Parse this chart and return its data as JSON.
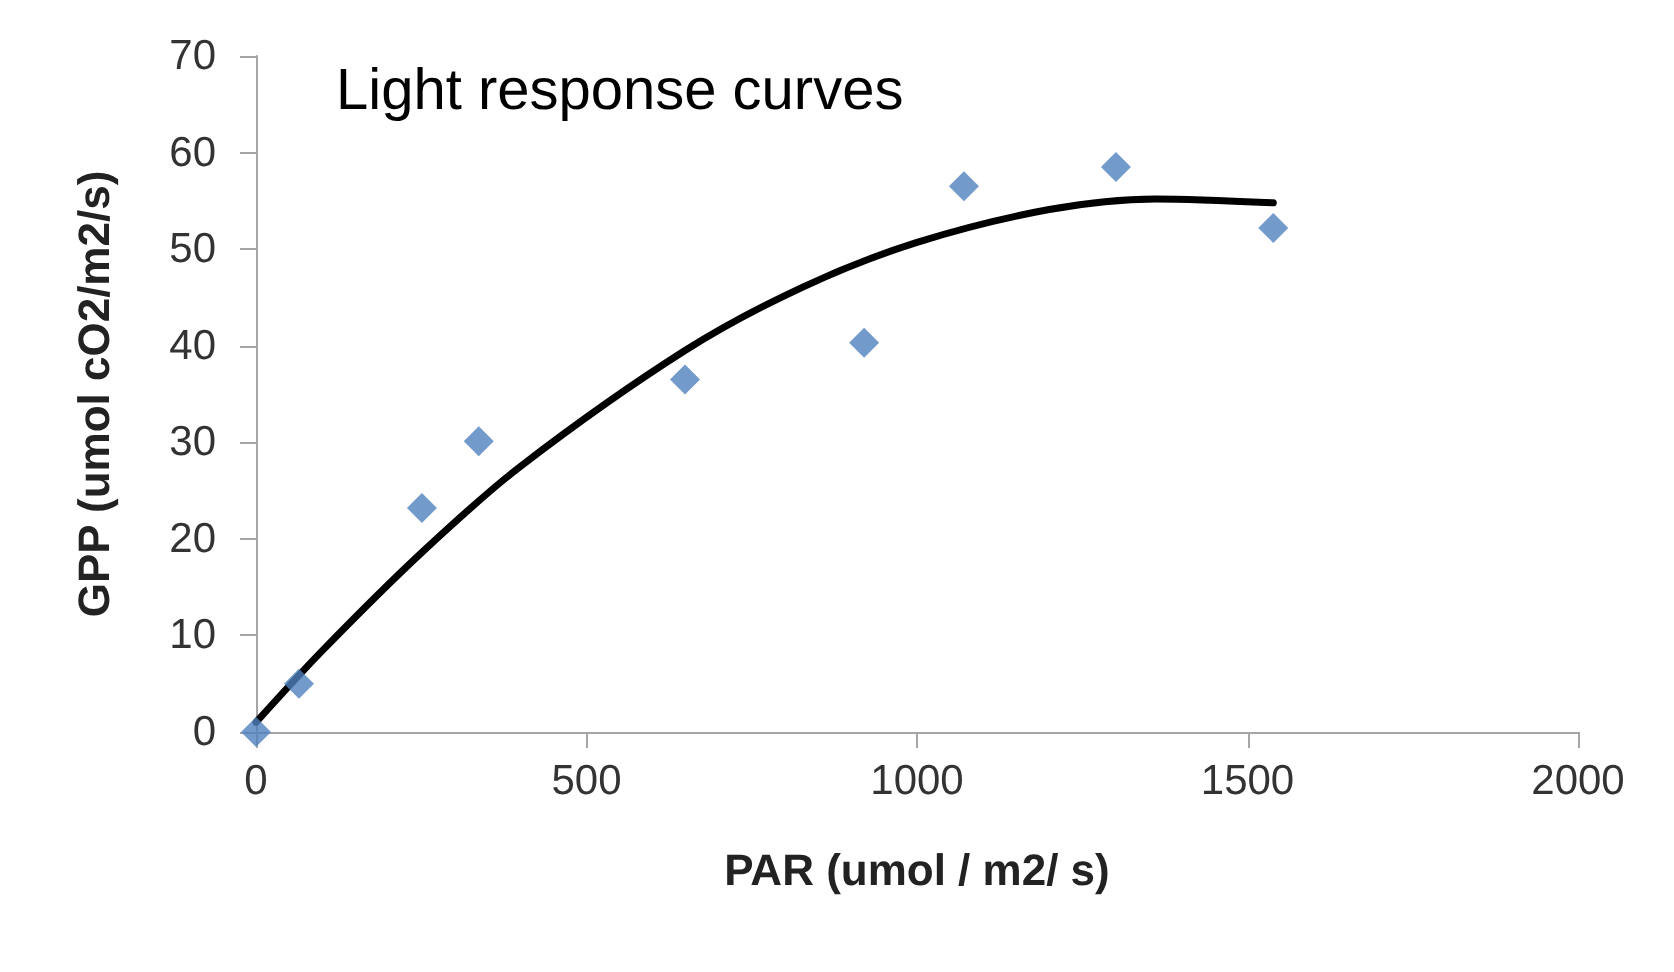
{
  "chart_data": {
    "type": "scatter",
    "title": "Light response curves",
    "xlabel": "PAR (umol / m2/ s)",
    "ylabel": "GPP (umol cO2/m2/s)",
    "xlim": [
      0,
      2000
    ],
    "xticks": [
      0,
      500,
      1000,
      1500,
      2000
    ],
    "ylim": [
      0,
      70
    ],
    "yticks": [
      0,
      10,
      20,
      30,
      40,
      50,
      60,
      70
    ],
    "grid": false,
    "series": [
      {
        "color": "#4f81bd",
        "marker": "diamond",
        "x": [
          0,
          65,
          251,
          337,
          649,
          920,
          1071,
          1301,
          1539
        ],
        "values": [
          0,
          5,
          23.2,
          30.1,
          36.5,
          40.3,
          56.5,
          58.5,
          52.2
        ]
      },
      {
        "type": "line",
        "color": "#000000",
        "marker": "none",
        "line_style": "solid",
        "x": [
          0,
          100,
          251,
          400,
          649,
          828,
          1000,
          1200,
          1361,
          1539
        ],
        "values": [
          1,
          8.4,
          18.6,
          27.5,
          39.5,
          46.1,
          50.7,
          54.1,
          55.2,
          54.8
        ]
      }
    ]
  }
}
